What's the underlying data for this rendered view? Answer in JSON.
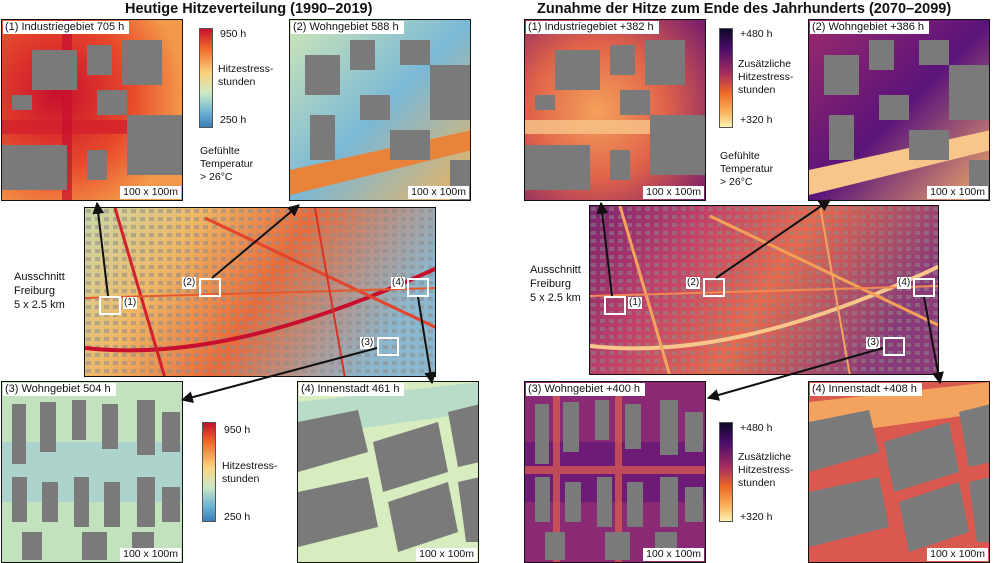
{
  "left_panel": {
    "title": "Heutige Hitzeverteilung (1990–2019)",
    "tiles": [
      {
        "label": "(1) Industriegebiet 705 h",
        "scale": "100 x 100m"
      },
      {
        "label": "(2) Wohngebiet 588 h",
        "scale": "100 x 100m"
      },
      {
        "label": "(3) Wohngebiet 504 h",
        "scale": "100 x 100m"
      },
      {
        "label": "(4) Innenstadt 461 h",
        "scale": "100 x 100m"
      }
    ],
    "legend": {
      "max": "950 h",
      "min": "250 h",
      "title": "Hitzestress-\nstunden",
      "colors": [
        "#c8102e",
        "#f06a2a",
        "#fbd27e",
        "#cdebc4",
        "#6db3d3",
        "#3d7fb8"
      ]
    },
    "legend_repeat": {
      "max": "950 h",
      "min": "250 h",
      "title": "Hitzestress-\nstunden"
    },
    "temp_note": "Gefühlte\nTemperatur\n> 26°C",
    "map_caption": "Ausschnitt\nFreiburg\n5 x 2.5 km",
    "markers": [
      "(1)",
      "(2)",
      "(3)",
      "(4)"
    ]
  },
  "right_panel": {
    "title": "Zunahme der Hitze zum Ende des Jahrhunderts (2070–2099)",
    "tiles": [
      {
        "label": "(1) Industriegebiet  +382 h",
        "scale": "100 x 100m"
      },
      {
        "label": "(2) Wohngebiet +386 h",
        "scale": "100 x 100m"
      },
      {
        "label": "(3) Wohngebiet +400 h",
        "scale": "100 x 100m"
      },
      {
        "label": "(4) Innenstadt +408 h",
        "scale": "100 x 100m"
      }
    ],
    "legend": {
      "max": "+480 h",
      "min": "+320 h",
      "title": "Zusätzliche\nHitzestress-\nstunden",
      "colors": [
        "#0d0829",
        "#4b0c6b",
        "#a52c60",
        "#ed6925",
        "#fbb35c",
        "#fcf2b4"
      ]
    },
    "legend_repeat": {
      "max": "+480 h",
      "min": "+320 h",
      "title": "Zusätzliche\nHitzestress-\nstunden"
    },
    "temp_note": "Gefühlte\nTemperatur\n> 26°C",
    "map_caption": "Ausschnitt\nFreiburg\n5 x 2.5 km",
    "markers": [
      "(1)",
      "(2)",
      "(3)",
      "(4)"
    ]
  }
}
